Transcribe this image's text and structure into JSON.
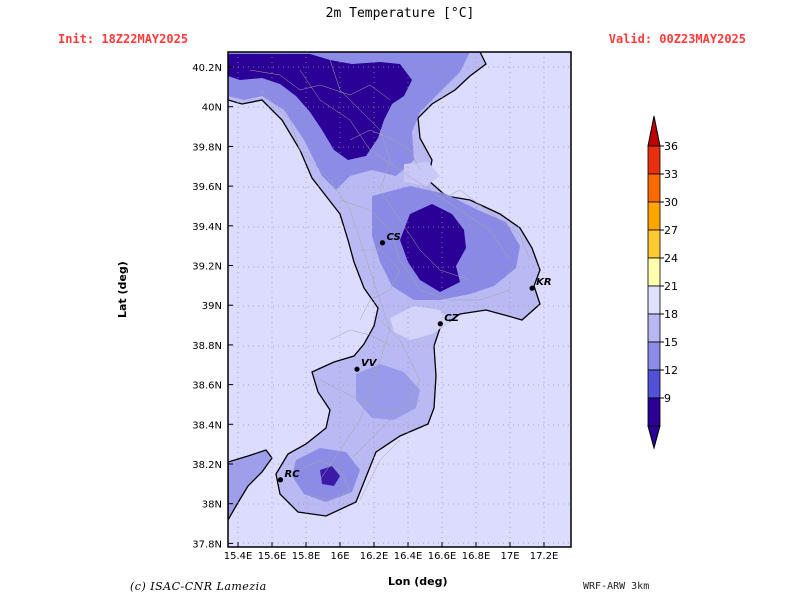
{
  "header": {
    "title": "2m Temperature [°C]",
    "init": "Init: 18Z22MAY2025",
    "valid": "Valid: 00Z23MAY2025"
  },
  "footer": {
    "credit": "(c) ISAC-CNR Lamezia",
    "model": "WRF-ARW 3km"
  },
  "axes": {
    "xlabel": "Lon (deg)",
    "ylabel": "Lat (deg)",
    "lon_ticks": [
      "15.4E",
      "15.6E",
      "15.8E",
      "16E",
      "16.2E",
      "16.4E",
      "16.6E",
      "16.8E",
      "17E",
      "17.2E"
    ],
    "lat_ticks": [
      "40.2N",
      "40N",
      "39.8N",
      "39.6N",
      "39.4N",
      "39.2N",
      "39N",
      "38.8N",
      "38.6N",
      "38.4N",
      "38.2N",
      "38N",
      "37.8N"
    ]
  },
  "colorbar": {
    "labels": [
      "36",
      "33",
      "30",
      "27",
      "24",
      "21",
      "18",
      "15",
      "12",
      "9"
    ],
    "colors": [
      "#c00000",
      "#e83010",
      "#ff6a00",
      "#ffa500",
      "#ffc933",
      "#ffffb0",
      "#e0e0ff",
      "#b8b8f5",
      "#8c8ce8",
      "#5050d8",
      "#2a0096"
    ]
  },
  "cities": [
    {
      "code": "CS",
      "lon": 16.25,
      "lat": 39.31
    },
    {
      "code": "KR",
      "lon": 17.13,
      "lat": 39.08
    },
    {
      "code": "CZ",
      "lon": 16.59,
      "lat": 38.9
    },
    {
      "code": "VV",
      "lon": 16.1,
      "lat": 38.67
    },
    {
      "code": "RC",
      "lon": 15.65,
      "lat": 38.11
    }
  ],
  "colors": {
    "sea": "#dcdcff",
    "land_warm": "#c2c2f6",
    "land_mid": "#9a9ae8",
    "land_cold": "#6a6ad8",
    "land_coldest": "#2a0096"
  }
}
